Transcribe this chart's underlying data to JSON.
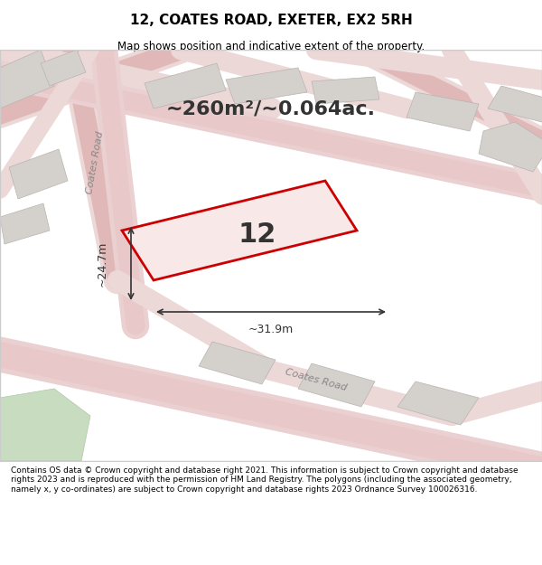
{
  "title_line1": "12, COATES ROAD, EXETER, EX2 5RH",
  "title_line2": "Map shows position and indicative extent of the property.",
  "area_text": "~260m²/~0.064ac.",
  "plot_number": "12",
  "dim_width": "~31.9m",
  "dim_height": "~24.7m",
  "footer_text": "Contains OS data © Crown copyright and database right 2021. This information is subject to Crown copyright and database rights 2023 and is reproduced with the permission of HM Land Registry. The polygons (including the associated geometry, namely x, y co-ordinates) are subject to Crown copyright and database rights 2023 Ordnance Survey 100026316.",
  "bg_color": "#f0ede8",
  "map_bg": "#f5f2ee",
  "road_color": "#e8c8c8",
  "plot_fill": "#f5e8e8",
  "plot_edge": "#cc0000",
  "building_fill": "#d0ccc8",
  "building_edge": "#b0aca8",
  "road_label1": "Coates Road",
  "road_label2": "Coates Road",
  "footer_bg": "#ffffff",
  "header_bg": "#ffffff"
}
